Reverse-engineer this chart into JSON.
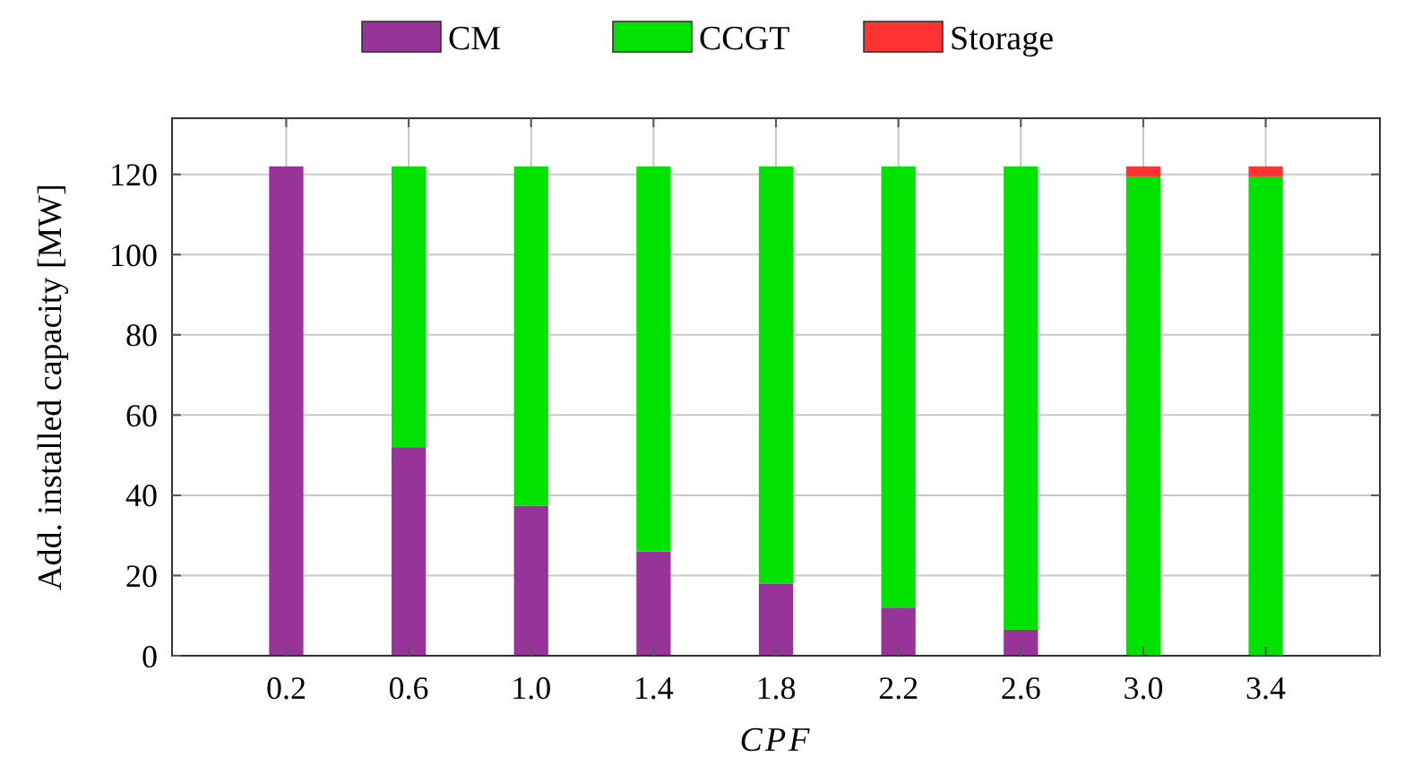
{
  "chart_data": {
    "type": "bar",
    "stacked": true,
    "xlabel": "CPF",
    "ylabel": "Add. installed capacity [MW]",
    "categories": [
      "0.2",
      "0.6",
      "1.0",
      "1.4",
      "1.8",
      "2.2",
      "2.6",
      "3.0",
      "3.4"
    ],
    "series": [
      {
        "name": "CM",
        "color": "#983399",
        "values": [
          122,
          52,
          37.4,
          26,
          18,
          12,
          6.5,
          0,
          0
        ]
      },
      {
        "name": "CCGT",
        "color": "#00e200",
        "values": [
          0,
          70,
          84.6,
          96,
          104,
          110,
          115.5,
          119.5,
          119.5
        ]
      },
      {
        "name": "Storage",
        "color": "#ff3333",
        "values": [
          0,
          0,
          0,
          0,
          0,
          0,
          0,
          2.5,
          2.5
        ]
      }
    ],
    "ylim": [
      0,
      134
    ],
    "yticks": [
      0,
      20,
      40,
      60,
      80,
      100,
      120
    ],
    "grid": true,
    "legend": "top"
  }
}
